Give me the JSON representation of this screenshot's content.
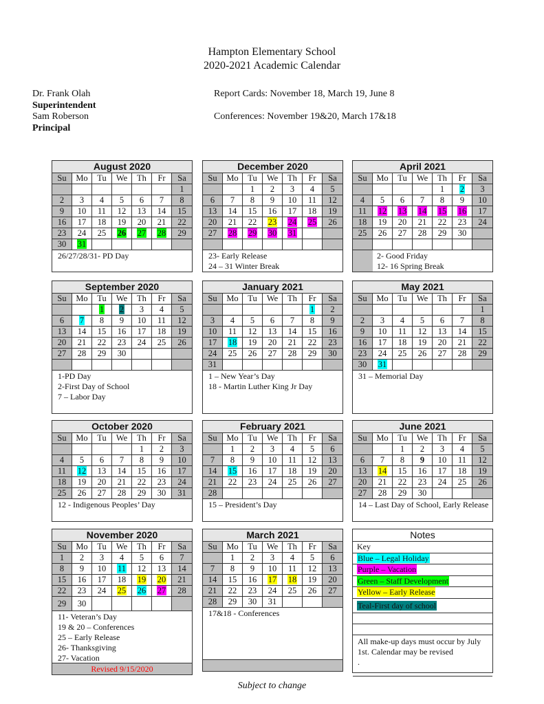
{
  "header": {
    "school": "Hampton Elementary School",
    "subtitle": "2020-2021 Academic Calendar",
    "superintendent_name": "Dr. Frank Olah",
    "superintendent_title": "Superintendent",
    "principal_name": "Sam Roberson",
    "principal_title": "Principal",
    "report_cards": "Report Cards: November 18, March 19, June 8",
    "conferences": "Conferences: November 19&20, March 17&18"
  },
  "colors": {
    "blue": "#00ffff",
    "purple": "#ff00ff",
    "green": "#00ff00",
    "yellow": "#ffff00",
    "teal": "#008080",
    "weekend": "#c0c0c0",
    "revised": "#ff0000"
  },
  "weekdays": [
    "Su",
    "Mo",
    "Tu",
    "We",
    "Th",
    "Fr",
    "Sa"
  ],
  "months": [
    {
      "title": "August 2020",
      "start": 6,
      "days": 31,
      "highlights": {
        "26": "green",
        "27": "green",
        "28": "green",
        "31": "green"
      },
      "bold": [
        "26"
      ],
      "notes": [
        "26/27/28/31- PD Day"
      ]
    },
    {
      "title": "December 2020",
      "start": 2,
      "days": 31,
      "highlights": {
        "23": "yellow",
        "24": "purple",
        "25": "purple",
        "28": "purple",
        "29": "purple",
        "30": "purple",
        "31": "purple"
      },
      "bold": [],
      "notes": [
        "23- Early Release",
        "24 – 31 Winter Break"
      ]
    },
    {
      "title": "April 2021",
      "start": 4,
      "days": 30,
      "highlights": {
        "2": "blue",
        "12": "purple",
        "13": "purple",
        "14": "purple",
        "15": "purple",
        "16": "purple"
      },
      "bold": [],
      "notes": [
        "2- Good Friday",
        "12- 16 Spring Break"
      ]
    },
    {
      "title": "September 2020",
      "start": 2,
      "days": 30,
      "highlights": {
        "1": "green",
        "2": "teal",
        "7": "blue"
      },
      "bold": [],
      "notes": [
        "1-PD Day",
        "2-First Day of School",
        "7 – Labor Day"
      ]
    },
    {
      "title": "January 2021",
      "start": 5,
      "days": 31,
      "highlights": {
        "1": "blue",
        "18": "blue"
      },
      "bold": [],
      "notes": [
        "1 – New Year’s Day",
        "18 - Martin Luther King Jr Day"
      ]
    },
    {
      "title": "May 2021",
      "start": 6,
      "days": 31,
      "highlights": {
        "31": "blue"
      },
      "bold": [],
      "notes": [
        "31 – Memorial Day"
      ]
    },
    {
      "title": "October 2020",
      "start": 4,
      "days": 31,
      "highlights": {
        "12": "blue"
      },
      "bold": [],
      "notes": [
        "12 -  Indigenous Peoples’ Day"
      ]
    },
    {
      "title": "February 2021",
      "start": 1,
      "days": 28,
      "highlights": {
        "15": "blue"
      },
      "bold": [],
      "notes": [
        "15 – President’s Day"
      ]
    },
    {
      "title": "June 2021",
      "start": 2,
      "days": 30,
      "highlights": {
        "14": "yellow"
      },
      "bold": [
        "9"
      ],
      "notes": [
        "14 – Last Day of School, Early Release"
      ]
    },
    {
      "title": "November 2020",
      "start": 0,
      "days": 30,
      "highlights": {
        "11": "blue",
        "19": "yellow",
        "20": "yellow",
        "25": "yellow",
        "26": "blue",
        "27": "purple"
      },
      "bold": [],
      "notes": [
        "11- Veteran’s Day",
        "19 & 20 – Conferences",
        "25 – Early Release",
        "26- Thanksgiving",
        "27- Vacation"
      ],
      "footer": "Revised 9/15/2020"
    },
    {
      "title": "March 2021",
      "start": 1,
      "days": 31,
      "highlights": {
        "17": "yellow",
        "18": "yellow"
      },
      "bold": [],
      "notes": [
        "17&18 - Conferences"
      ],
      "footer": ""
    }
  ],
  "key": {
    "title": "Notes",
    "label": "Key",
    "items": [
      {
        "text": "Blue – Legal Holiday",
        "color": "blue"
      },
      {
        "text": "Purple – Vacation",
        "color": "purple"
      },
      {
        "text": "Green – Staff Development",
        "color": "green"
      },
      {
        "text": "Yellow – Early Release",
        "color": "yellow"
      },
      {
        "text": "Teal-First day of school",
        "color": "teal"
      }
    ],
    "note": "All make-up days must occur by July 1st. Calendar may be revised",
    "note_tail": "."
  },
  "footer": "Subject to change"
}
